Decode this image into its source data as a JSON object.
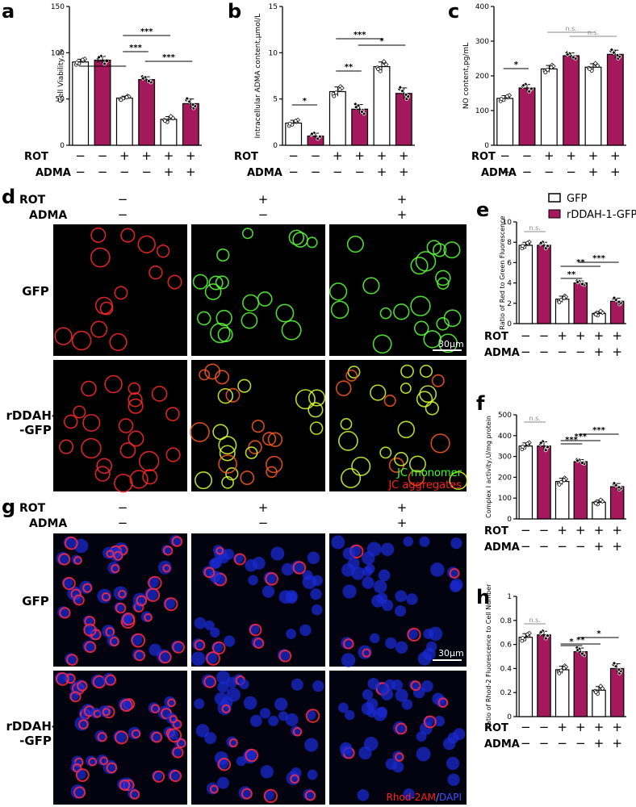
{
  "colors": {
    "gfp": "#ffffff",
    "rddah": "#a3195b",
    "stroke": "#000000",
    "sig": "#000000",
    "ns": "#888888"
  },
  "legend": {
    "entries": [
      "GFP",
      "rDDAH-1-GFP"
    ]
  },
  "condition_rows": {
    "rot_label": "ROT",
    "adma_label": "ADMA",
    "rot": [
      "−",
      "−",
      "+",
      "+",
      "+",
      "+"
    ],
    "adma": [
      "−",
      "−",
      "−",
      "−",
      "+",
      "+"
    ]
  },
  "chart_data": [
    {
      "id": "a",
      "panel_letter": "a",
      "type": "bar",
      "ylabel": "Cell Viability,%",
      "ylim": [
        0,
        150
      ],
      "yticks": [
        0,
        50,
        100,
        150
      ],
      "values": [
        90,
        92,
        51,
        71,
        28,
        45
      ],
      "errors": [
        3,
        4,
        2,
        3,
        3,
        5
      ],
      "significance": [
        {
          "from": 0,
          "to": 2,
          "text": "***"
        },
        {
          "from": 2,
          "to": 3,
          "text": "***"
        },
        {
          "from": 2,
          "to": 4,
          "text": "***"
        },
        {
          "from": 3,
          "to": 5,
          "text": "***"
        }
      ]
    },
    {
      "id": "b",
      "panel_letter": "b",
      "type": "bar",
      "ylabel": "Intracellular ADMA content,μmol/L",
      "ylim": [
        0,
        15
      ],
      "yticks": [
        0,
        5,
        10,
        15
      ],
      "values": [
        2.4,
        1.0,
        5.8,
        3.9,
        8.5,
        5.6
      ],
      "errors": [
        0.3,
        0.3,
        0.5,
        0.5,
        0.5,
        0.6
      ],
      "significance": [
        {
          "from": 0,
          "to": 1,
          "text": "*"
        },
        {
          "from": 2,
          "to": 3,
          "text": "**"
        },
        {
          "from": 2,
          "to": 4,
          "text": "***"
        },
        {
          "from": 3,
          "to": 5,
          "text": "*"
        }
      ]
    },
    {
      "id": "c",
      "panel_letter": "c",
      "type": "bar",
      "ylabel": "NO content,pg/mL",
      "ylim": [
        0,
        400
      ],
      "yticks": [
        0,
        100,
        200,
        300,
        400
      ],
      "values": [
        135,
        165,
        220,
        258,
        225,
        262
      ],
      "errors": [
        8,
        10,
        10,
        8,
        10,
        12
      ],
      "significance": [
        {
          "from": 0,
          "to": 1,
          "text": "*"
        },
        {
          "from": 2,
          "to": 4,
          "text": "n.s."
        },
        {
          "from": 3,
          "to": 5,
          "text": "n.s."
        }
      ]
    },
    {
      "id": "e",
      "panel_letter": "e",
      "type": "bar",
      "ylabel": "Ratio of Red to Green Fluorescence",
      "ylim": [
        0,
        10
      ],
      "yticks": [
        0,
        2,
        4,
        6,
        8,
        10
      ],
      "values": [
        7.7,
        7.7,
        2.4,
        4.0,
        1.0,
        2.2
      ],
      "errors": [
        0.3,
        0.3,
        0.3,
        0.2,
        0.2,
        0.3
      ],
      "significance": [
        {
          "from": 0,
          "to": 1,
          "text": "n.s."
        },
        {
          "from": 2,
          "to": 3,
          "text": "**"
        },
        {
          "from": 2,
          "to": 4,
          "text": "**"
        },
        {
          "from": 3,
          "to": 5,
          "text": "***"
        }
      ]
    },
    {
      "id": "f",
      "panel_letter": "f",
      "type": "bar",
      "ylabel": "Complex Ⅰ activity,U/mg protein",
      "ylim": [
        0,
        500
      ],
      "yticks": [
        0,
        100,
        200,
        300,
        400,
        500
      ],
      "values": [
        350,
        350,
        180,
        275,
        80,
        155
      ],
      "errors": [
        15,
        20,
        15,
        10,
        10,
        15
      ],
      "significance": [
        {
          "from": 0,
          "to": 1,
          "text": "n.s."
        },
        {
          "from": 2,
          "to": 3,
          "text": "***"
        },
        {
          "from": 2,
          "to": 4,
          "text": "***"
        },
        {
          "from": 3,
          "to": 5,
          "text": "***"
        }
      ]
    },
    {
      "id": "h",
      "panel_letter": "h",
      "type": "bar",
      "ylabel": "Ratio of Rhod-2 Fluorescence to Cell Number",
      "ylim": [
        0,
        1.0
      ],
      "yticks": [
        0,
        0.2,
        0.4,
        0.6,
        0.8,
        1.0
      ],
      "values": [
        0.66,
        0.68,
        0.39,
        0.54,
        0.22,
        0.4
      ],
      "errors": [
        0.03,
        0.03,
        0.03,
        0.03,
        0.03,
        0.04
      ],
      "significance": [
        {
          "from": 0,
          "to": 1,
          "text": "n.s."
        },
        {
          "from": 2,
          "to": 3,
          "text": "*"
        },
        {
          "from": 2,
          "to": 4,
          "text": "**"
        },
        {
          "from": 3,
          "to": 5,
          "text": "*"
        }
      ]
    }
  ],
  "image_panels": {
    "d": {
      "panel_letter": "d",
      "rows": [
        "GFP",
        "rDDAH-1\n-GFP"
      ],
      "col_rot": [
        "−",
        "+",
        "+"
      ],
      "col_adma": [
        "−",
        "−",
        "+"
      ],
      "scale_bar": "30μm",
      "channel_1": "JC monomer",
      "channel_2": "JC aggregates"
    },
    "g": {
      "panel_letter": "g",
      "rows": [
        "GFP",
        "rDDAH-1\n-GFP"
      ],
      "col_rot": [
        "−",
        "+",
        "+"
      ],
      "col_adma": [
        "−",
        "−",
        "+"
      ],
      "scale_bar": "30μm",
      "channel_1": "Rhod-2AM",
      "channel_sep": "/",
      "channel_2": "DAPI"
    }
  }
}
